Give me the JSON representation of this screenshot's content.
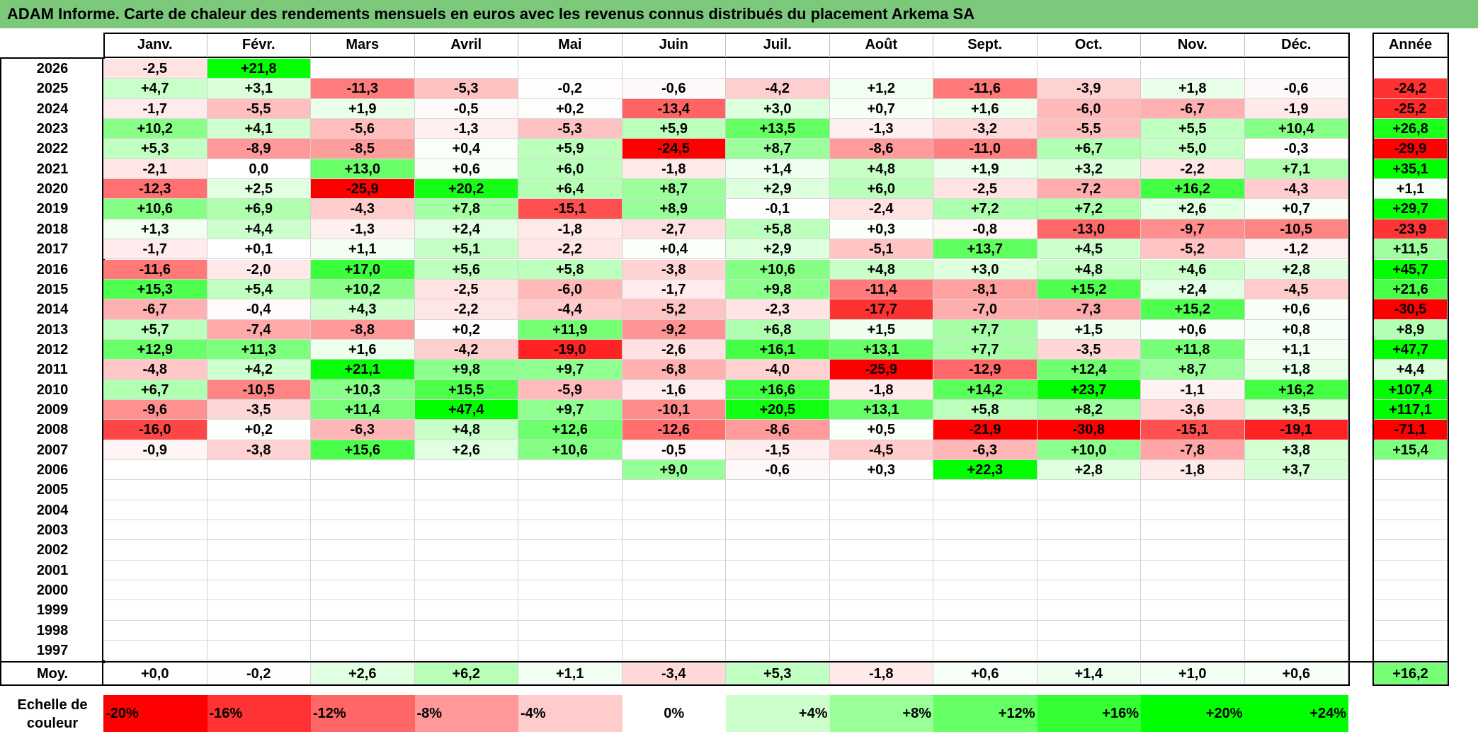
{
  "title": "ADAM Informe. Carte de chaleur des rendements mensuels en euros avec les revenus connus distribués du placement Arkema SA",
  "chart_data": {
    "type": "heatmap",
    "title": "ADAM Informe. Carte de chaleur des rendements mensuels en euros avec les revenus connus distribués du placement Arkema SA",
    "months": [
      "Janv.",
      "Févr.",
      "Mars",
      "Avril",
      "Mai",
      "Juin",
      "Juil.",
      "Août",
      "Sept.",
      "Oct.",
      "Nov.",
      "Déc."
    ],
    "year_header": "Année",
    "rows": [
      {
        "year": "2026",
        "values": [
          "-2,5",
          "+21,8",
          "",
          "",
          "",
          "",
          "",
          "",
          "",
          "",
          "",
          ""
        ],
        "total": ""
      },
      {
        "year": "2025",
        "values": [
          "+4,7",
          "+3,1",
          "-11,3",
          "-5,3",
          "-0,2",
          "-0,6",
          "-4,2",
          "+1,2",
          "-11,6",
          "-3,9",
          "+1,8",
          "-0,6"
        ],
        "total": "-24,2"
      },
      {
        "year": "2024",
        "values": [
          "-1,7",
          "-5,5",
          "+1,9",
          "-0,5",
          "+0,2",
          "-13,4",
          "+3,0",
          "+0,7",
          "+1,6",
          "-6,0",
          "-6,7",
          "-1,9"
        ],
        "total": "-25,2"
      },
      {
        "year": "2023",
        "values": [
          "+10,2",
          "+4,1",
          "-5,6",
          "-1,3",
          "-5,3",
          "+5,9",
          "+13,5",
          "-1,3",
          "-3,2",
          "-5,5",
          "+5,5",
          "+10,4"
        ],
        "total": "+26,8"
      },
      {
        "year": "2022",
        "values": [
          "+5,3",
          "-8,9",
          "-8,5",
          "+0,4",
          "+5,9",
          "-24,5",
          "+8,7",
          "-8,6",
          "-11,0",
          "+6,7",
          "+5,0",
          "-0,3"
        ],
        "total": "-29,9"
      },
      {
        "year": "2021",
        "values": [
          "-2,1",
          "0,0",
          "+13,0",
          "+0,6",
          "+6,0",
          "-1,8",
          "+1,4",
          "+4,8",
          "+1,9",
          "+3,2",
          "-2,2",
          "+7,1"
        ],
        "total": "+35,1"
      },
      {
        "year": "2020",
        "values": [
          "-12,3",
          "+2,5",
          "-25,9",
          "+20,2",
          "+6,4",
          "+8,7",
          "+2,9",
          "+6,0",
          "-2,5",
          "-7,2",
          "+16,2",
          "-4,3"
        ],
        "total": "+1,1"
      },
      {
        "year": "2019",
        "values": [
          "+10,6",
          "+6,9",
          "-4,3",
          "+7,8",
          "-15,1",
          "+8,9",
          "-0,1",
          "-2,4",
          "+7,2",
          "+7,2",
          "+2,6",
          "+0,7"
        ],
        "total": "+29,7"
      },
      {
        "year": "2018",
        "values": [
          "+1,3",
          "+4,4",
          "-1,3",
          "+2,4",
          "-1,8",
          "-2,7",
          "+5,8",
          "+0,3",
          "-0,8",
          "-13,0",
          "-9,7",
          "-10,5"
        ],
        "total": "-23,9"
      },
      {
        "year": "2017",
        "values": [
          "-1,7",
          "+0,1",
          "+1,1",
          "+5,1",
          "-2,2",
          "+0,4",
          "+2,9",
          "-5,1",
          "+13,7",
          "+4,5",
          "-5,2",
          "-1,2"
        ],
        "total": "+11,5"
      },
      {
        "year": "2016",
        "values": [
          "-11,6",
          "-2,0",
          "+17,0",
          "+5,6",
          "+5,8",
          "-3,8",
          "+10,6",
          "+4,8",
          "+3,0",
          "+4,8",
          "+4,6",
          "+2,8"
        ],
        "total": "+45,7"
      },
      {
        "year": "2015",
        "values": [
          "+15,3",
          "+5,4",
          "+10,2",
          "-2,5",
          "-6,0",
          "-1,7",
          "+9,8",
          "-11,4",
          "-8,1",
          "+15,2",
          "+2,4",
          "-4,5"
        ],
        "total": "+21,6"
      },
      {
        "year": "2014",
        "values": [
          "-6,7",
          "-0,4",
          "+4,3",
          "-2,2",
          "-4,4",
          "-5,2",
          "-2,3",
          "-17,7",
          "-7,0",
          "-7,3",
          "+15,2",
          "+0,6"
        ],
        "total": "-30,5"
      },
      {
        "year": "2013",
        "values": [
          "+5,7",
          "-7,4",
          "-8,8",
          "+0,2",
          "+11,9",
          "-9,2",
          "+6,8",
          "+1,5",
          "+7,7",
          "+1,5",
          "+0,6",
          "+0,8"
        ],
        "total": "+8,9"
      },
      {
        "year": "2012",
        "values": [
          "+12,9",
          "+11,3",
          "+1,6",
          "-4,2",
          "-19,0",
          "-2,6",
          "+16,1",
          "+13,1",
          "+7,7",
          "-3,5",
          "+11,8",
          "+1,1"
        ],
        "total": "+47,7"
      },
      {
        "year": "2011",
        "values": [
          "-4,8",
          "+4,2",
          "+21,1",
          "+9,8",
          "+9,7",
          "-6,8",
          "-4,0",
          "-25,9",
          "-12,9",
          "+12,4",
          "+8,7",
          "+1,8"
        ],
        "total": "+4,4"
      },
      {
        "year": "2010",
        "values": [
          "+6,7",
          "-10,5",
          "+10,3",
          "+15,5",
          "-5,9",
          "-1,6",
          "+16,6",
          "-1,8",
          "+14,2",
          "+23,7",
          "-1,1",
          "+16,2"
        ],
        "total": "+107,4"
      },
      {
        "year": "2009",
        "values": [
          "-9,6",
          "-3,5",
          "+11,4",
          "+47,4",
          "+9,7",
          "-10,1",
          "+20,5",
          "+13,1",
          "+5,8",
          "+8,2",
          "-3,6",
          "+3,5"
        ],
        "total": "+117,1"
      },
      {
        "year": "2008",
        "values": [
          "-16,0",
          "+0,2",
          "-6,3",
          "+4,8",
          "+12,6",
          "-12,6",
          "-8,6",
          "+0,5",
          "-21,9",
          "-30,8",
          "-15,1",
          "-19,1"
        ],
        "total": "-71,1"
      },
      {
        "year": "2007",
        "values": [
          "-0,9",
          "-3,8",
          "+15,6",
          "+2,6",
          "+10,6",
          "-0,5",
          "-1,5",
          "-4,5",
          "-6,3",
          "+10,0",
          "-7,8",
          "+3,8"
        ],
        "total": "+15,4"
      },
      {
        "year": "2006",
        "values": [
          "",
          "",
          "",
          "",
          "",
          "+9,0",
          "-0,6",
          "+0,3",
          "+22,3",
          "+2,8",
          "-1,8",
          "+3,7"
        ],
        "total": ""
      },
      {
        "year": "2005",
        "values": [
          "",
          "",
          "",
          "",
          "",
          "",
          "",
          "",
          "",
          "",
          "",
          ""
        ],
        "total": ""
      },
      {
        "year": "2004",
        "values": [
          "",
          "",
          "",
          "",
          "",
          "",
          "",
          "",
          "",
          "",
          "",
          ""
        ],
        "total": ""
      },
      {
        "year": "2003",
        "values": [
          "",
          "",
          "",
          "",
          "",
          "",
          "",
          "",
          "",
          "",
          "",
          ""
        ],
        "total": ""
      },
      {
        "year": "2002",
        "values": [
          "",
          "",
          "",
          "",
          "",
          "",
          "",
          "",
          "",
          "",
          "",
          ""
        ],
        "total": ""
      },
      {
        "year": "2001",
        "values": [
          "",
          "",
          "",
          "",
          "",
          "",
          "",
          "",
          "",
          "",
          "",
          ""
        ],
        "total": ""
      },
      {
        "year": "2000",
        "values": [
          "",
          "",
          "",
          "",
          "",
          "",
          "",
          "",
          "",
          "",
          "",
          ""
        ],
        "total": ""
      },
      {
        "year": "1999",
        "values": [
          "",
          "",
          "",
          "",
          "",
          "",
          "",
          "",
          "",
          "",
          "",
          ""
        ],
        "total": ""
      },
      {
        "year": "1998",
        "values": [
          "",
          "",
          "",
          "",
          "",
          "",
          "",
          "",
          "",
          "",
          "",
          ""
        ],
        "total": ""
      },
      {
        "year": "1997",
        "values": [
          "",
          "",
          "",
          "",
          "",
          "",
          "",
          "",
          "",
          "",
          "",
          ""
        ],
        "total": ""
      }
    ],
    "average": {
      "label": "Moy.",
      "values": [
        "+0,0",
        "-0,2",
        "+2,6",
        "+6,2",
        "+1,1",
        "-3,4",
        "+5,3",
        "-1,8",
        "+0,6",
        "+1,4",
        "+1,0",
        "+0,6"
      ],
      "total": "+16,2"
    },
    "color_scale": {
      "label_line1": "Echelle de",
      "label_line2": "couleur",
      "stops": [
        {
          "label": "-20%",
          "value": -20,
          "color": "#ff0000"
        },
        {
          "label": "-16%",
          "value": -16,
          "color": "#ff3333"
        },
        {
          "label": "-12%",
          "value": -12,
          "color": "#ff6666"
        },
        {
          "label": "-8%",
          "value": -8,
          "color": "#ff9999"
        },
        {
          "label": "-4%",
          "value": -4,
          "color": "#ffcccc"
        },
        {
          "label": "0%",
          "value": 0,
          "color": "#ffffff"
        },
        {
          "label": "+4%",
          "value": 4,
          "color": "#ccffcc"
        },
        {
          "label": "+8%",
          "value": 8,
          "color": "#99ff99"
        },
        {
          "label": "+12%",
          "value": 12,
          "color": "#66ff66"
        },
        {
          "label": "+16%",
          "value": 16,
          "color": "#33ff33"
        },
        {
          "label": "+20%",
          "value": 20,
          "color": "#00ff00"
        },
        {
          "label": "+24%",
          "value": 24,
          "color": "#00ff00"
        }
      ]
    }
  }
}
